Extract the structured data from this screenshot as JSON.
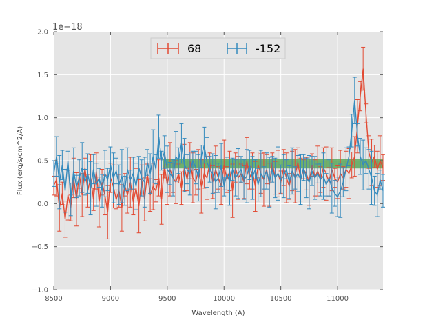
{
  "chart_data": {
    "type": "line",
    "title": "",
    "xlabel": "Wavelength (A)",
    "ylabel": "Flux (erg/s/cm^2/A)",
    "y_offset_label": "1e−18",
    "xlim": [
      8500,
      11400
    ],
    "ylim": [
      -1.0,
      2.0
    ],
    "y_scale_exponent": -18,
    "x_ticks": [
      8500,
      9000,
      9500,
      10000,
      10500,
      11000
    ],
    "x_tick_labels": [
      "8500",
      "9000",
      "9500",
      "10000",
      "10500",
      "11000"
    ],
    "y_ticks": [
      -1.0,
      -0.5,
      0.0,
      0.5,
      1.0,
      1.5,
      2.0
    ],
    "y_tick_labels": [
      "−1.0",
      "−0.5",
      "0.0",
      "0.5",
      "1.0",
      "1.5",
      "2.0"
    ],
    "grid": true,
    "legend_position": "top-center",
    "band": {
      "x_start": 9460,
      "x_end": 11400,
      "y_low": 0.41,
      "y_high": 0.52,
      "color": "#3a9a3a"
    },
    "series": [
      {
        "name": "68",
        "color": "#e24a33",
        "x": [
          8500,
          8525,
          8550,
          8575,
          8600,
          8625,
          8650,
          8675,
          8700,
          8725,
          8750,
          8775,
          8800,
          8825,
          8850,
          8875,
          8900,
          8925,
          8950,
          8975,
          9000,
          9025,
          9050,
          9075,
          9100,
          9125,
          9150,
          9175,
          9200,
          9225,
          9250,
          9275,
          9300,
          9325,
          9350,
          9375,
          9400,
          9425,
          9450,
          9475,
          9500,
          9525,
          9550,
          9575,
          9600,
          9625,
          9650,
          9675,
          9700,
          9725,
          9750,
          9775,
          9800,
          9825,
          9850,
          9875,
          9900,
          9925,
          9950,
          9975,
          10000,
          10025,
          10050,
          10075,
          10100,
          10125,
          10150,
          10175,
          10200,
          10225,
          10250,
          10275,
          10300,
          10325,
          10350,
          10375,
          10400,
          10425,
          10450,
          10475,
          10500,
          10525,
          10550,
          10575,
          10600,
          10625,
          10650,
          10675,
          10700,
          10725,
          10750,
          10775,
          10800,
          10825,
          10850,
          10875,
          10900,
          10925,
          10950,
          10975,
          11000,
          11025,
          11050,
          11075,
          11100,
          11125,
          11150,
          11175,
          11200,
          11225,
          11250,
          11275,
          11300,
          11325,
          11350,
          11375,
          11400
        ],
        "y": [
          0.21,
          0.28,
          -0.05,
          0.12,
          -0.18,
          0.1,
          -0.05,
          0.3,
          0.05,
          0.35,
          0.1,
          0.42,
          0.15,
          0.3,
          0.05,
          0.38,
          0.02,
          0.25,
          0.1,
          -0.1,
          0.3,
          0.2,
          0.05,
          0.15,
          -0.05,
          0.22,
          0.1,
          0.25,
          0.02,
          0.18,
          -0.03,
          0.28,
          0.05,
          0.35,
          0.1,
          0.2,
          0.15,
          0.3,
          0.05,
          0.45,
          0.22,
          0.4,
          0.3,
          0.25,
          0.35,
          0.18,
          0.42,
          0.28,
          0.5,
          0.3,
          0.25,
          0.4,
          0.2,
          0.35,
          0.3,
          0.48,
          0.25,
          0.4,
          0.3,
          0.2,
          0.45,
          0.28,
          0.38,
          0.15,
          0.42,
          0.3,
          0.35,
          0.25,
          0.5,
          0.3,
          0.38,
          0.2,
          0.45,
          0.35,
          0.28,
          0.4,
          0.22,
          0.48,
          0.3,
          0.35,
          0.25,
          0.42,
          0.3,
          0.2,
          0.38,
          0.32,
          0.48,
          0.28,
          0.4,
          0.35,
          0.25,
          0.45,
          0.3,
          0.38,
          0.28,
          0.42,
          0.35,
          0.25,
          0.4,
          0.3,
          0.25,
          0.35,
          0.3,
          0.4,
          0.35,
          0.45,
          0.55,
          0.9,
          1.25,
          1.57,
          1.05,
          0.6,
          0.48,
          0.55,
          0.4,
          0.5,
          0.42
        ]
      },
      {
        "name": "-152",
        "color": "#348abd",
        "x": [
          8500,
          8525,
          8550,
          8575,
          8600,
          8625,
          8650,
          8675,
          8700,
          8725,
          8750,
          8775,
          8800,
          8825,
          8850,
          8875,
          8900,
          8925,
          8950,
          8975,
          9000,
          9025,
          9050,
          9075,
          9100,
          9125,
          9150,
          9175,
          9200,
          9225,
          9250,
          9275,
          9300,
          9325,
          9350,
          9375,
          9400,
          9425,
          9450,
          9475,
          9500,
          9525,
          9550,
          9575,
          9600,
          9625,
          9650,
          9675,
          9700,
          9725,
          9750,
          9775,
          9800,
          9825,
          9850,
          9875,
          9900,
          9925,
          9950,
          9975,
          10000,
          10025,
          10050,
          10075,
          10100,
          10125,
          10150,
          10175,
          10200,
          10225,
          10250,
          10275,
          10300,
          10325,
          10350,
          10375,
          10400,
          10425,
          10450,
          10475,
          10500,
          10525,
          10550,
          10575,
          10600,
          10625,
          10650,
          10675,
          10700,
          10725,
          10750,
          10775,
          10800,
          10825,
          10850,
          10875,
          10900,
          10925,
          10950,
          10975,
          11000,
          11025,
          11050,
          11075,
          11100,
          11125,
          11150,
          11175,
          11200,
          11225,
          11250,
          11275,
          11300,
          11325,
          11350,
          11375,
          11400
        ],
        "y": [
          0.35,
          0.55,
          0.25,
          0.45,
          0.15,
          0.5,
          0.05,
          0.38,
          0.2,
          0.3,
          0.42,
          0.25,
          0.35,
          0.18,
          0.4,
          0.22,
          0.3,
          0.15,
          0.35,
          0.28,
          0.45,
          0.3,
          0.38,
          0.22,
          0.32,
          0.15,
          0.4,
          0.28,
          0.35,
          0.2,
          0.42,
          0.3,
          0.25,
          0.48,
          0.35,
          0.55,
          0.4,
          0.78,
          0.5,
          0.6,
          0.4,
          0.35,
          0.3,
          0.55,
          0.5,
          0.7,
          0.45,
          0.4,
          0.35,
          0.5,
          0.42,
          0.3,
          0.55,
          0.68,
          0.48,
          0.4,
          0.35,
          0.25,
          0.3,
          0.45,
          0.2,
          0.35,
          0.25,
          0.4,
          0.3,
          0.35,
          0.4,
          0.28,
          0.32,
          0.45,
          0.3,
          0.4,
          0.22,
          0.35,
          0.3,
          0.38,
          0.25,
          0.4,
          0.3,
          0.35,
          0.28,
          0.32,
          0.4,
          0.25,
          0.38,
          0.3,
          0.35,
          0.28,
          0.42,
          0.3,
          0.25,
          0.38,
          0.3,
          0.35,
          0.28,
          0.32,
          0.22,
          0.3,
          0.18,
          0.12,
          0.08,
          0.15,
          0.25,
          0.4,
          0.55,
          0.85,
          1.2,
          0.8,
          0.55,
          0.45,
          0.5,
          0.4,
          0.3,
          0.15,
          0.1,
          0.28,
          0.15
        ]
      }
    ]
  }
}
